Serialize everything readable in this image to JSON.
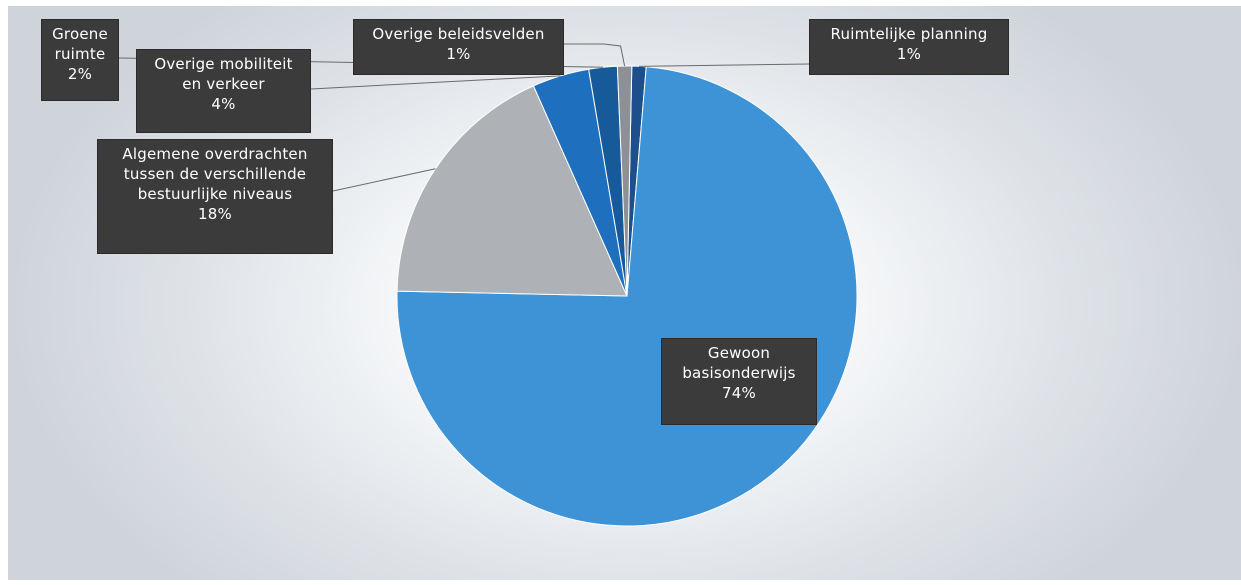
{
  "chart_data": {
    "type": "pie",
    "slices": [
      {
        "label": "Ruimtelijke planning",
        "value": 1,
        "value_label": "1%",
        "color": "#1d4f8c"
      },
      {
        "label": "Gewoon basisonderwijs",
        "value": 74,
        "value_label": "74%",
        "color": "#3d93d6"
      },
      {
        "label": "Algemene overdrachten tussen de verschillende bestuurlijke niveaus",
        "value": 18,
        "value_label": "18%",
        "color": "#aeb2b7"
      },
      {
        "label": "Overige mobiliteit en verkeer",
        "value": 4,
        "value_label": "4%",
        "color": "#1f6fbf"
      },
      {
        "label": "Groene ruimte",
        "value": 2,
        "value_label": "2%",
        "color": "#175a9a"
      },
      {
        "label": "Overige beleidsvelden",
        "value": 1,
        "value_label": "1%",
        "color": "#8d9196"
      }
    ],
    "labels": {
      "ruimtelijke_planning": {
        "line1": "Ruimtelijke planning",
        "line2": "1%"
      },
      "gewoon_basisonderwijs": {
        "line1": "Gewoon",
        "line2": "basisonderwijs",
        "line3": "74%"
      },
      "algemene_overdrachten": {
        "line1": "Algemene overdrachten",
        "line2": "tussen de verschillende",
        "line3": "bestuurlijke niveaus",
        "line4": "18%"
      },
      "overige_mobiliteit": {
        "line1": "Overige mobiliteit",
        "line2": "en verkeer",
        "line3": "4%"
      },
      "groene_ruimte": {
        "line1": "Groene",
        "line2": "ruimte",
        "line3": "2%"
      },
      "overige_beleidsvelden": {
        "line1": "Overige beleidsvelden",
        "line2": "1%"
      }
    },
    "legend": "none"
  }
}
